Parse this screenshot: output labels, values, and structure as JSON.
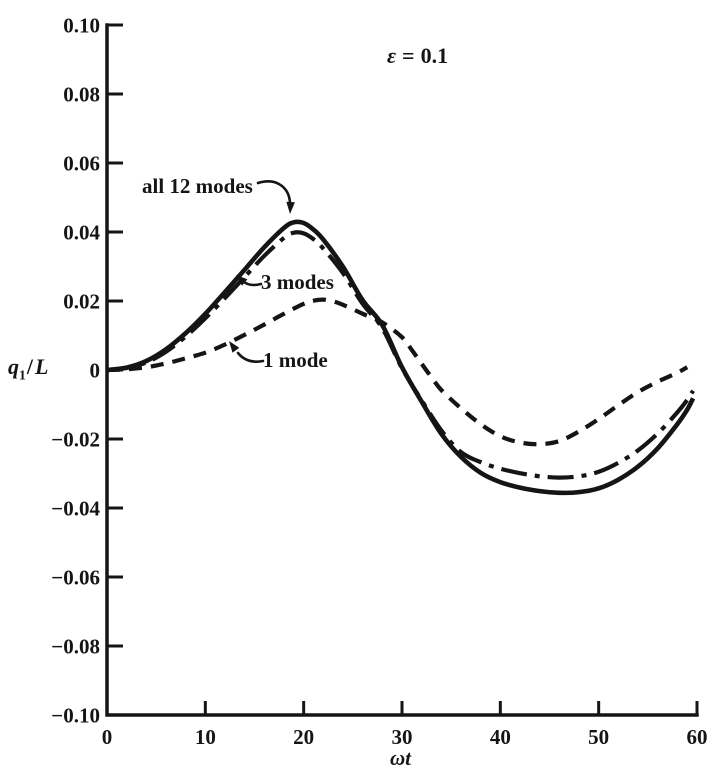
{
  "colors": {
    "ink": "#151515",
    "paper": "#ffffff"
  },
  "chart_data": {
    "type": "line",
    "title": "",
    "epsilon": {
      "sym": "ε",
      "eq": "=",
      "val": "0.1"
    },
    "xlabel": "ωt",
    "ylabel": "q1/L",
    "ylabel_parts": {
      "base": "q",
      "sub": "1",
      "slash": "/",
      "denom": "L"
    },
    "xlim": [
      0,
      60
    ],
    "ylim": [
      -0.1,
      0.1
    ],
    "grid": false,
    "x_ticks": [
      0,
      10,
      20,
      30,
      40,
      50,
      60
    ],
    "x_tick_labels": [
      "0",
      "10",
      "20",
      "30",
      "40",
      "50",
      "60"
    ],
    "y_ticks": [
      0.1,
      0.08,
      0.06,
      0.04,
      0.02,
      0,
      -0.02,
      -0.04,
      -0.06,
      -0.08,
      -0.1
    ],
    "y_tick_labels": [
      "0.10",
      "0.08",
      "0.06",
      "0.04",
      "0.02",
      "0",
      "−0.02",
      "−0.04",
      "−0.06",
      "−0.08",
      "−0.10"
    ],
    "series": [
      {
        "id": "all-12-modes",
        "name": "all 12 modes",
        "line_style": "solid",
        "dash": null,
        "width": 4.6,
        "points": [
          [
            0,
            0
          ],
          [
            2,
            0.0007
          ],
          [
            4,
            0.0026
          ],
          [
            6,
            0.006
          ],
          [
            8,
            0.0107
          ],
          [
            10,
            0.0163
          ],
          [
            12,
            0.0226
          ],
          [
            14,
            0.0291
          ],
          [
            16,
            0.0356
          ],
          [
            18,
            0.0412
          ],
          [
            19,
            0.0428
          ],
          [
            20,
            0.0426
          ],
          [
            21,
            0.0407
          ],
          [
            22,
            0.0378
          ],
          [
            24,
            0.0299
          ],
          [
            26,
            0.0202
          ],
          [
            28,
            0.013
          ],
          [
            30,
            0.0008
          ],
          [
            32,
            -0.0092
          ],
          [
            34,
            -0.0185
          ],
          [
            36,
            -0.0252
          ],
          [
            38,
            -0.0298
          ],
          [
            40,
            -0.0325
          ],
          [
            42,
            -0.0341
          ],
          [
            44,
            -0.0351
          ],
          [
            46,
            -0.0356
          ],
          [
            48,
            -0.0354
          ],
          [
            50,
            -0.0343
          ],
          [
            52,
            -0.0318
          ],
          [
            54,
            -0.028
          ],
          [
            56,
            -0.0227
          ],
          [
            58,
            -0.0157
          ],
          [
            59,
            -0.0115
          ],
          [
            59.6,
            -0.0082
          ]
        ]
      },
      {
        "id": "3-modes",
        "name": "3 modes",
        "line_style": "dash-dot",
        "dash": "26 8 5 8",
        "width": 4.2,
        "points": [
          [
            0,
            0
          ],
          [
            2,
            0.0006
          ],
          [
            4,
            0.0022
          ],
          [
            6,
            0.0053
          ],
          [
            8,
            0.0097
          ],
          [
            10,
            0.015
          ],
          [
            12,
            0.0209
          ],
          [
            14,
            0.027
          ],
          [
            16,
            0.0331
          ],
          [
            18,
            0.0383
          ],
          [
            19,
            0.0398
          ],
          [
            20,
            0.0396
          ],
          [
            21,
            0.0379
          ],
          [
            22,
            0.0352
          ],
          [
            24,
            0.0281
          ],
          [
            26,
            0.0192
          ],
          [
            28,
            0.0121
          ],
          [
            30,
            0.0005
          ],
          [
            32,
            -0.0088
          ],
          [
            34,
            -0.0175
          ],
          [
            36,
            -0.0238
          ],
          [
            38,
            -0.0267
          ],
          [
            40,
            -0.0286
          ],
          [
            42,
            -0.0299
          ],
          [
            44,
            -0.0308
          ],
          [
            46,
            -0.0312
          ],
          [
            48,
            -0.0308
          ],
          [
            50,
            -0.0295
          ],
          [
            52,
            -0.0269
          ],
          [
            54,
            -0.0233
          ],
          [
            56,
            -0.0184
          ],
          [
            58,
            -0.0123
          ],
          [
            59,
            -0.0087
          ],
          [
            59.6,
            -0.006
          ]
        ]
      },
      {
        "id": "1-mode",
        "name": "1 mode",
        "line_style": "dashed",
        "dash": "13 9",
        "width": 4.2,
        "points": [
          [
            0,
            0
          ],
          [
            2,
            0.0002
          ],
          [
            4,
            0.0008
          ],
          [
            6,
            0.0019
          ],
          [
            8,
            0.0034
          ],
          [
            10,
            0.005
          ],
          [
            12,
            0.0074
          ],
          [
            14,
            0.0102
          ],
          [
            16,
            0.0132
          ],
          [
            18,
            0.0163
          ],
          [
            20,
            0.0192
          ],
          [
            21,
            0.0201
          ],
          [
            22,
            0.0204
          ],
          [
            23,
            0.0199
          ],
          [
            24,
            0.0189
          ],
          [
            26,
            0.0163
          ],
          [
            28,
            0.0138
          ],
          [
            30,
            0.0095
          ],
          [
            31,
            0.0058
          ],
          [
            32,
            0.0018
          ],
          [
            33,
            -0.0021
          ],
          [
            34,
            -0.0058
          ],
          [
            36,
            -0.0111
          ],
          [
            38,
            -0.0157
          ],
          [
            40,
            -0.0192
          ],
          [
            42,
            -0.021
          ],
          [
            44,
            -0.0215
          ],
          [
            46,
            -0.0206
          ],
          [
            48,
            -0.0178
          ],
          [
            50,
            -0.0142
          ],
          [
            52,
            -0.0102
          ],
          [
            54,
            -0.0064
          ],
          [
            56,
            -0.0034
          ],
          [
            58,
            -0.0008
          ],
          [
            59,
            0.0008
          ]
        ]
      }
    ]
  }
}
